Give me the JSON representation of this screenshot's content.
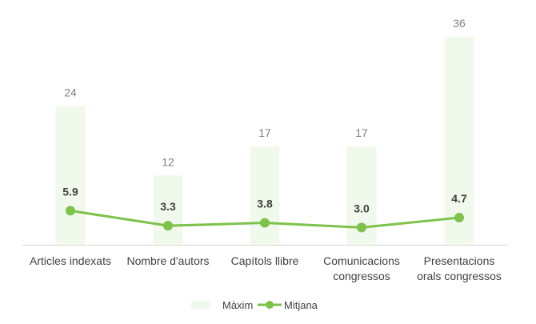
{
  "chart_data": {
    "type": "bar",
    "title": "",
    "xlabel": "",
    "ylabel": "",
    "categories": [
      [
        "Articles indexats"
      ],
      [
        "Nombre d'autors"
      ],
      [
        "Capítols llibre"
      ],
      [
        "Comunicacions",
        "congressos"
      ],
      [
        "Presentacions",
        "orals congressos"
      ]
    ],
    "series": [
      {
        "name": "Màxim",
        "kind": "bar",
        "color": "#f1f8ec",
        "values": [
          24,
          12,
          17,
          17,
          36
        ],
        "labels": [
          "24",
          "12",
          "17",
          "17",
          "36"
        ]
      },
      {
        "name": "Mitjana",
        "kind": "line",
        "color": "#7dc24a",
        "values": [
          5.9,
          3.3,
          3.8,
          3.0,
          4.7
        ],
        "labels": [
          "5.9",
          "3.3",
          "3.8",
          "3.0",
          "4.7"
        ]
      }
    ],
    "ylim": [
      0,
      36
    ],
    "grid": false,
    "legend_position": "bottom",
    "axis_color": "#d9d9d9",
    "label_colors": {
      "bar_labels": "#7f7f7f",
      "line_labels": "#404040",
      "category_labels": "#404040"
    }
  }
}
